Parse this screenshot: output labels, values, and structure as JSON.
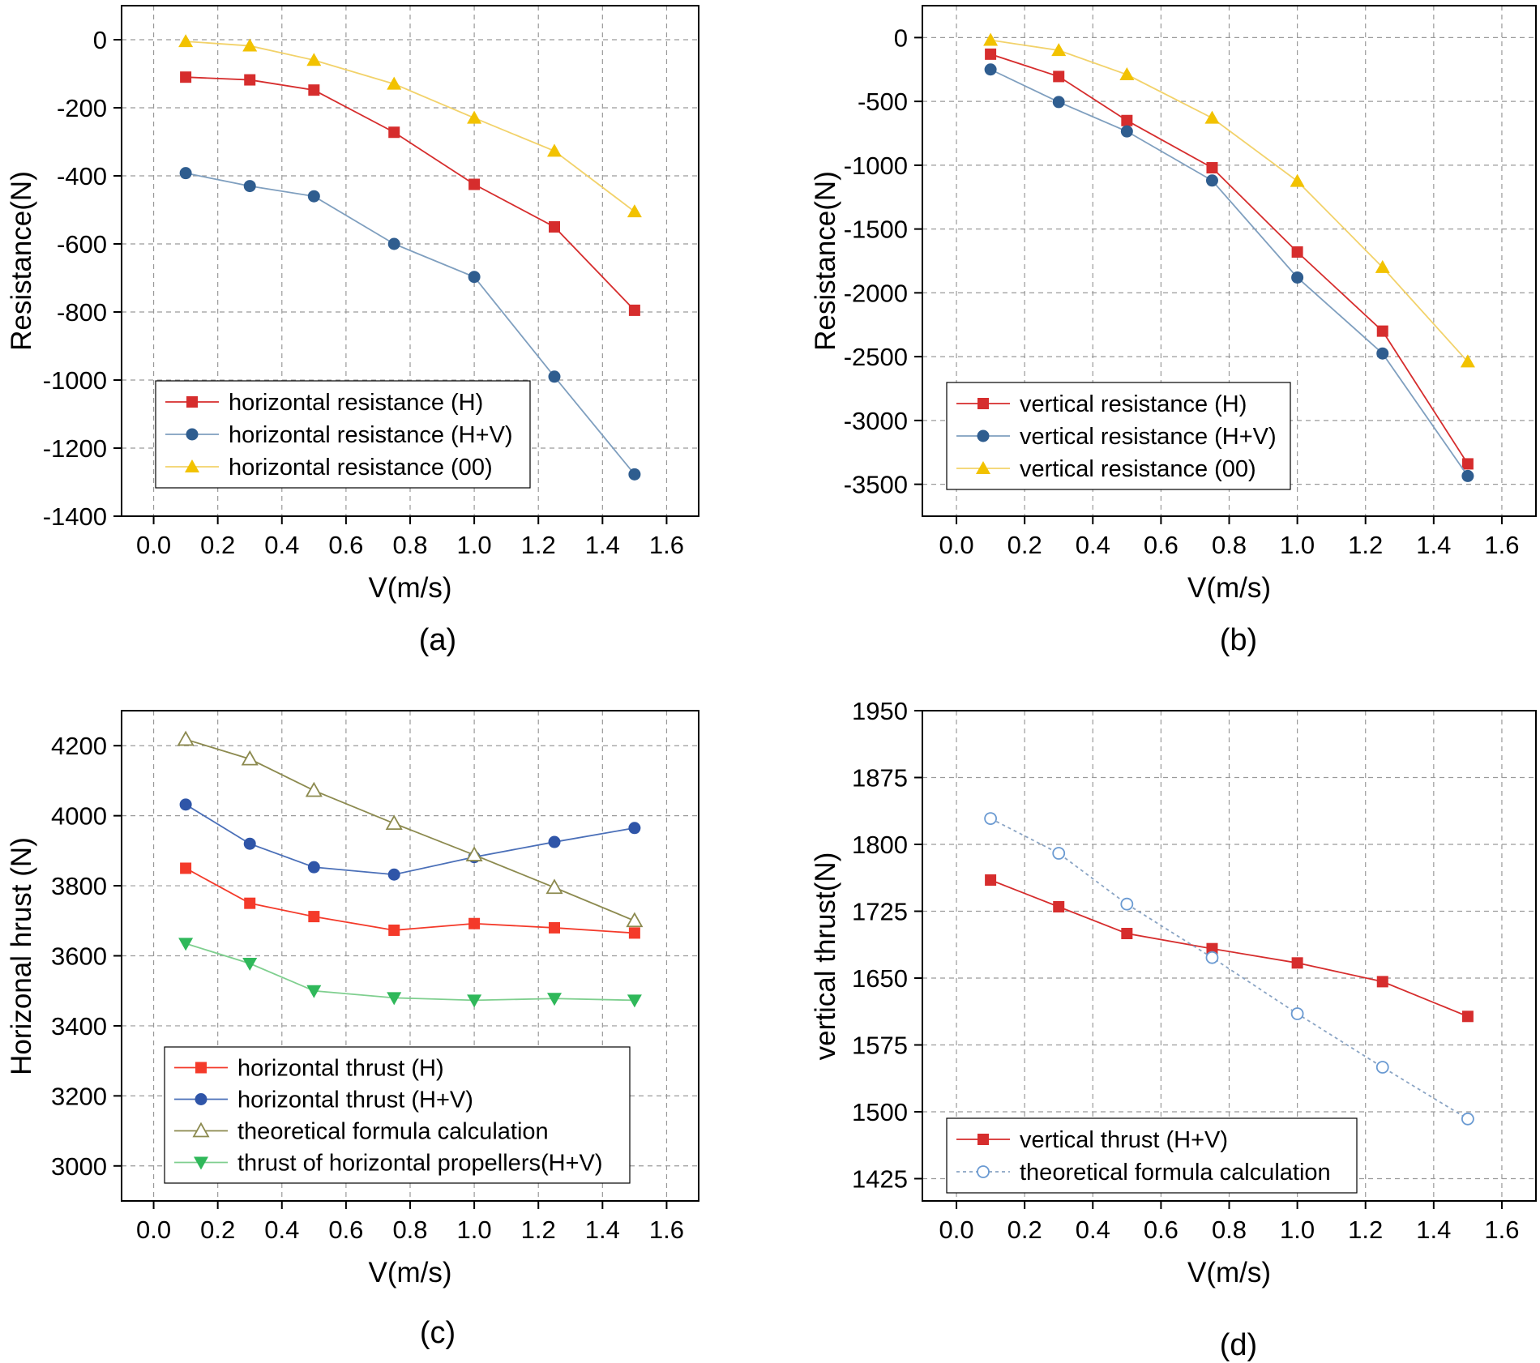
{
  "chart_data": [
    {
      "id": "a",
      "type": "line",
      "panel_label": "(a)",
      "xlabel": "V(m/s)",
      "ylabel": "Resistance(N)",
      "xlim": [
        -0.1,
        1.7
      ],
      "ylim": [
        -1400,
        100
      ],
      "xticks": [
        0.0,
        0.2,
        0.4,
        0.6,
        0.8,
        1.0,
        1.2,
        1.4,
        1.6
      ],
      "xtick_labels": [
        "0.0",
        "0.2",
        "0.4",
        "0.6",
        "0.8",
        "1.0",
        "1.2",
        "1.4",
        "1.6"
      ],
      "yticks": [
        0,
        -200,
        -400,
        -600,
        -800,
        -1000,
        -1200,
        -1400
      ],
      "ytick_labels": [
        "0",
        "-200",
        "-400",
        "-600",
        "-800",
        "-1000",
        "-1200",
        "-1400"
      ],
      "legend_position": "bottom-left",
      "x": [
        0.1,
        0.3,
        0.5,
        0.75,
        1.0,
        1.25,
        1.5
      ],
      "series": [
        {
          "name": "horizontal resistance (H)",
          "values": [
            -110,
            -118,
            -148,
            -272,
            -425,
            -550,
            -795
          ],
          "color": "#d62d2d",
          "marker": "square"
        },
        {
          "name": "horizontal resistance (H+V)",
          "values": [
            -392,
            -430,
            -460,
            -600,
            -697,
            -990,
            -1277
          ],
          "color": "#2f5d8f",
          "line_color": "#7f9fbf",
          "marker": "circle"
        },
        {
          "name": "horizontal resistance (00)",
          "values": [
            -5,
            -18,
            -60,
            -130,
            -230,
            -327,
            -505
          ],
          "color": "#f2c200",
          "line_color": "#f2d26a",
          "marker": "triangle"
        }
      ]
    },
    {
      "id": "b",
      "type": "line",
      "panel_label": "(b)",
      "xlabel": "V(m/s)",
      "ylabel": "Resistance(N)",
      "xlim": [
        -0.1,
        1.7
      ],
      "ylim": [
        -3750,
        250
      ],
      "xticks": [
        0.0,
        0.2,
        0.4,
        0.6,
        0.8,
        1.0,
        1.2,
        1.4,
        1.6
      ],
      "xtick_labels": [
        "0.0",
        "0.2",
        "0.4",
        "0.6",
        "0.8",
        "1.0",
        "1.2",
        "1.4",
        "1.6"
      ],
      "yticks": [
        0,
        -500,
        -1000,
        -1500,
        -2000,
        -2500,
        -3000,
        -3500
      ],
      "ytick_labels": [
        "0",
        "-500",
        "-1000",
        "-1500",
        "-2000",
        "-2500",
        "-3000",
        "-3500"
      ],
      "legend_position": "bottom-left",
      "x": [
        0.1,
        0.3,
        0.5,
        0.75,
        1.0,
        1.25,
        1.5
      ],
      "series": [
        {
          "name": "vertical resistance (H)",
          "values": [
            -130,
            -305,
            -650,
            -1020,
            -1680,
            -2300,
            -3340
          ],
          "color": "#d62d2d",
          "marker": "square"
        },
        {
          "name": "vertical resistance (H+V)",
          "values": [
            -250,
            -505,
            -735,
            -1120,
            -1880,
            -2475,
            -3435
          ],
          "color": "#2f5d8f",
          "line_color": "#7f9fbf",
          "marker": "circle"
        },
        {
          "name": "vertical resistance (00)",
          "values": [
            -20,
            -100,
            -290,
            -630,
            -1125,
            -1800,
            -2540
          ],
          "color": "#f2c200",
          "line_color": "#f2d26a",
          "marker": "triangle"
        }
      ]
    },
    {
      "id": "c",
      "type": "line",
      "panel_label": "(c)",
      "xlabel": "V(m/s)",
      "ylabel": "Horizonal hrust (N)",
      "xlim": [
        -0.1,
        1.7
      ],
      "ylim": [
        2900,
        4300
      ],
      "xticks": [
        0.0,
        0.2,
        0.4,
        0.6,
        0.8,
        1.0,
        1.2,
        1.4,
        1.6
      ],
      "xtick_labels": [
        "0.0",
        "0.2",
        "0.4",
        "0.6",
        "0.8",
        "1.0",
        "1.2",
        "1.4",
        "1.6"
      ],
      "yticks": [
        3000,
        3200,
        3400,
        3600,
        3800,
        4000,
        4200
      ],
      "ytick_labels": [
        "3000",
        "3200",
        "3400",
        "3600",
        "3800",
        "4000",
        "4200"
      ],
      "legend_position": "bottom-left",
      "x": [
        0.1,
        0.3,
        0.5,
        0.75,
        1.0,
        1.25,
        1.5
      ],
      "series": [
        {
          "name": "horizontal thrust (H)",
          "values": [
            3850,
            3750,
            3712,
            3673,
            3692,
            3680,
            3665
          ],
          "color": "#f43a2a",
          "marker": "square"
        },
        {
          "name": "horizontal thrust (H+V)",
          "values": [
            4032,
            3920,
            3853,
            3832,
            3882,
            3925,
            3965
          ],
          "color": "#2f55a8",
          "line_color": "#4a6fb8",
          "marker": "circle"
        },
        {
          "name": "theoretical formula calculation",
          "values": [
            4218,
            4162,
            4072,
            3978,
            3888,
            3795,
            3700
          ],
          "color": "#8c8a4f",
          "marker": "triangle-open"
        },
        {
          "name": "thrust of horizontal propellers(H+V)",
          "values": [
            3635,
            3578,
            3500,
            3480,
            3473,
            3478,
            3473
          ],
          "color": "#2fb85a",
          "line_color": "#7fcf8f",
          "marker": "triangle-down"
        }
      ]
    },
    {
      "id": "d",
      "type": "line",
      "panel_label": "(d)",
      "xlabel": "V(m/s)",
      "ylabel": "vertical thrust(N)",
      "xlim": [
        -0.1,
        1.7
      ],
      "ylim": [
        1400,
        1950
      ],
      "xticks": [
        0.0,
        0.2,
        0.4,
        0.6,
        0.8,
        1.0,
        1.2,
        1.4,
        1.6
      ],
      "xtick_labels": [
        "0.0",
        "0.2",
        "0.4",
        "0.6",
        "0.8",
        "1.0",
        "1.2",
        "1.4",
        "1.6"
      ],
      "yticks": [
        1425,
        1500,
        1575,
        1650,
        1725,
        1800,
        1875,
        1950
      ],
      "ytick_labels": [
        "1425",
        "1500",
        "1575",
        "1650",
        "1725",
        "1800",
        "1875",
        "1950"
      ],
      "legend_position": "bottom-left",
      "x": [
        0.1,
        0.3,
        0.5,
        0.75,
        1.0,
        1.25,
        1.5
      ],
      "series": [
        {
          "name": "vertical thrust (H+V)",
          "values": [
            1760,
            1730,
            1700,
            1683,
            1667,
            1646,
            1607
          ],
          "color": "#d62d2d",
          "marker": "square"
        },
        {
          "name": "theoretical formula calculation",
          "values": [
            1829,
            1790,
            1733,
            1673,
            1610,
            1550,
            1492
          ],
          "color": "#6a9ad2",
          "line_color": "#8aa4c4",
          "marker": "circle-open",
          "dashed": true
        }
      ]
    }
  ]
}
